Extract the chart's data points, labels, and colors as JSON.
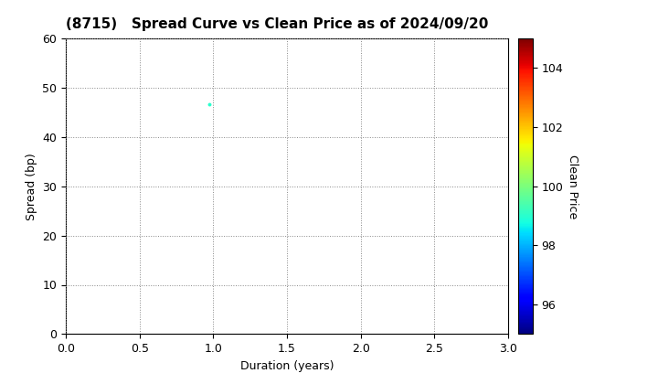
{
  "title": "(8715)   Spread Curve vs Clean Price as of 2024/09/20",
  "xlabel": "Duration (years)",
  "ylabel": "Spread (bp)",
  "colorbar_label": "Clean Price",
  "xlim": [
    0.0,
    3.0
  ],
  "ylim": [
    0,
    60
  ],
  "xticks": [
    0.0,
    0.5,
    1.0,
    1.5,
    2.0,
    2.5,
    3.0
  ],
  "yticks": [
    0,
    10,
    20,
    30,
    40,
    50,
    60
  ],
  "colorbar_min": 95,
  "colorbar_max": 105,
  "colorbar_ticks": [
    96,
    98,
    100,
    102,
    104
  ],
  "scatter_x": [
    0.97
  ],
  "scatter_y": [
    46.7
  ],
  "scatter_color": [
    99.0
  ],
  "scatter_size": 8,
  "grid_color": "#888888",
  "background_color": "#ffffff",
  "title_fontsize": 11,
  "axis_fontsize": 9,
  "tick_fontsize": 9,
  "colorbar_fontsize": 9
}
